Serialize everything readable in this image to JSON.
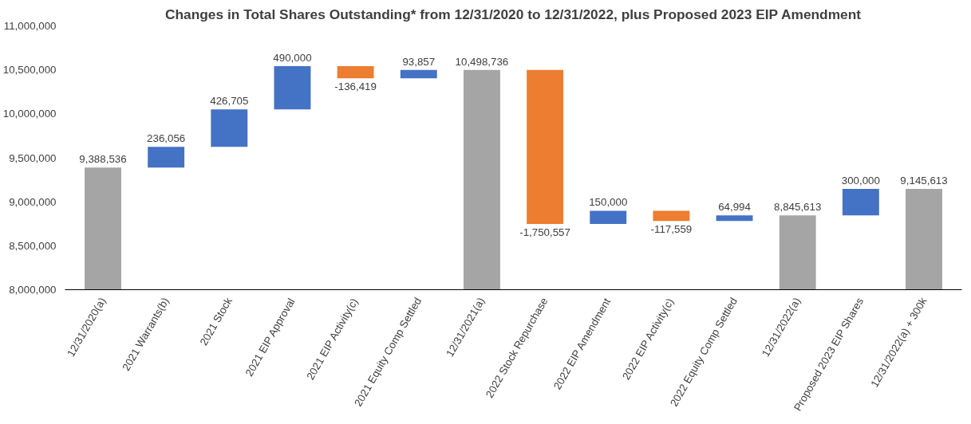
{
  "chart_data": {
    "type": "bar",
    "title": "Changes in Total Shares Outstanding* from 12/31/2020 to 12/31/2022, plus Proposed 2023 EIP Amendment",
    "categories": [
      "12/31/2020(a)",
      "2021 Warrants(b)",
      "2021 Stock",
      "2021 EIP Approval",
      "2021 EIP Activity(c)",
      "2021 Equity Comp Settled",
      "12/31/2021(a)",
      "2022 Stock Repurchase",
      "2022 EIP Amendment",
      "2022 EIP Activity(c)",
      "2022 Equity Comp Settled",
      "12/31/2022(a)",
      "Proposed 2023 EIP Shares",
      "12/31/2022(a) + 300k"
    ],
    "values": [
      9388536,
      236056,
      426705,
      490000,
      -136419,
      93857,
      10498736,
      -1750557,
      150000,
      -117559,
      64994,
      8845613,
      300000,
      9145613
    ],
    "base": [
      null,
      9388536,
      9624592,
      10051297,
      10541297,
      10404878,
      null,
      10498736,
      8748179,
      8898179,
      8780620,
      null,
      8845613,
      null
    ],
    "colors": [
      "#a5a5a5",
      "#4472c4",
      "#4472c4",
      "#4472c4",
      "#ed7d31",
      "#4472c4",
      "#a5a5a5",
      "#ed7d31",
      "#4472c4",
      "#ed7d31",
      "#4472c4",
      "#a5a5a5",
      "#4472c4",
      "#a5a5a5"
    ],
    "value_labels": [
      "9,388,536",
      "236,056",
      "426,705",
      "490,000",
      "-136,419",
      "93,857",
      "10,498,736",
      "-1,750,557",
      "150,000",
      "-117,559",
      "64,994",
      "8,845,613",
      "300,000",
      "9,145,613"
    ],
    "ylim": [
      8000000,
      11000000
    ],
    "yticks": [
      {
        "value": 8000000,
        "label": "8,000,000"
      },
      {
        "value": 8500000,
        "label": "8,500,000"
      },
      {
        "value": 9000000,
        "label": "9,000,000"
      },
      {
        "value": 9500000,
        "label": "9,500,000"
      },
      {
        "value": 10000000,
        "label": "10,000,000"
      },
      {
        "value": 10500000,
        "label": "10,500,000"
      },
      {
        "value": 11000000,
        "label": "11,000,000"
      }
    ],
    "grid": false
  }
}
